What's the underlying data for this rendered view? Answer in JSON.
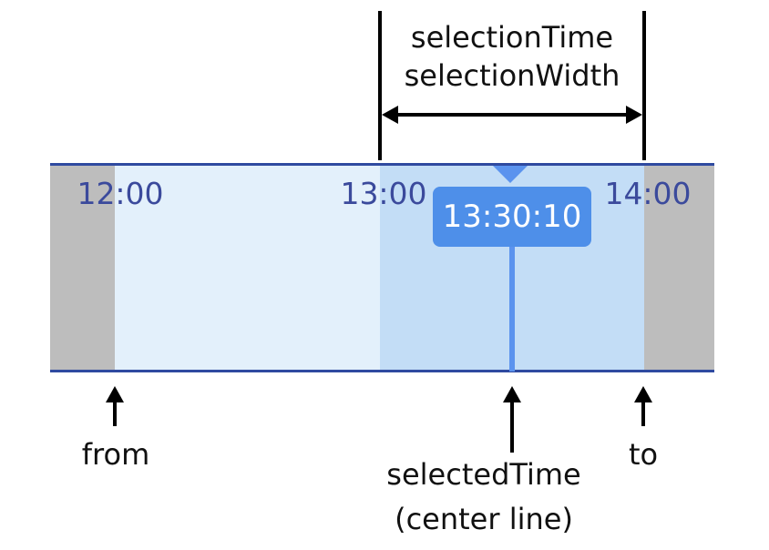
{
  "timeline": {
    "ticks": [
      "12:00",
      "13:00",
      "14:00"
    ],
    "badge_time": "13:30:10"
  },
  "annotations": {
    "top_line1": "selectionTime",
    "top_line2": "selectionWidth",
    "from": "from",
    "to": "to",
    "selected_line1": "selectedTime",
    "selected_line2": "(center line)"
  },
  "colors": {
    "outside_range": "#bdbdbd",
    "visible_range": "#e3f0fb",
    "selection": "#c3ddf6",
    "accent": "#5b93ee",
    "tick_text": "#3b4a9c"
  }
}
